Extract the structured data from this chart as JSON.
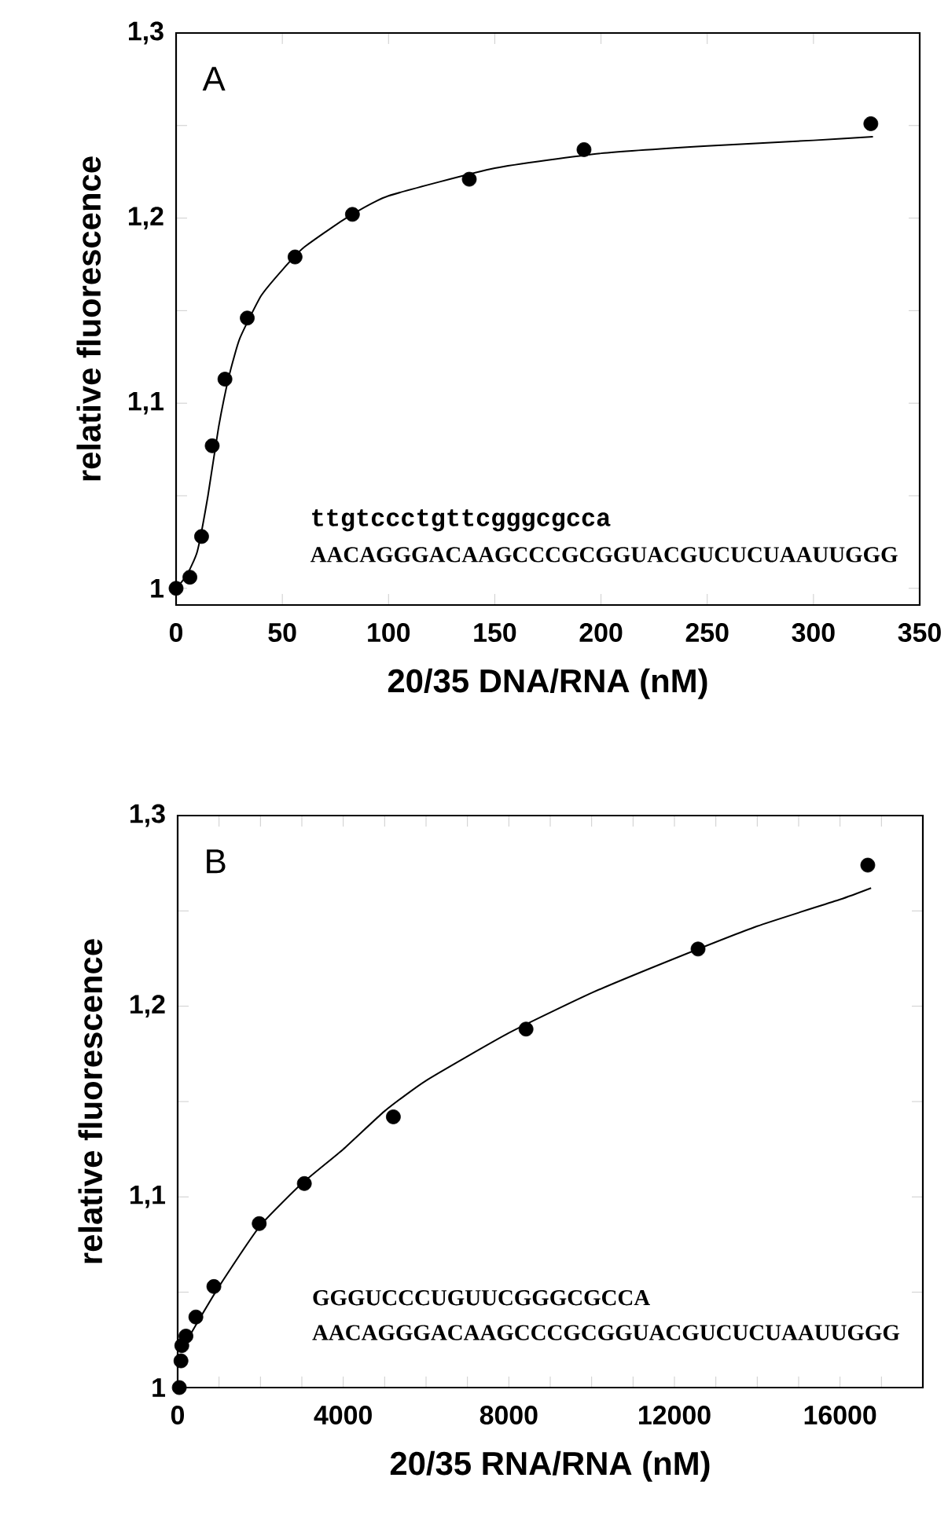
{
  "chart_data": [
    {
      "type": "scatter",
      "xlabel": "20/35 DNA/RNA (nM)",
      "ylabel": "relative fluorescence",
      "xlim": [
        0,
        350
      ],
      "xticks": [
        0,
        50,
        100,
        150,
        200,
        250,
        300,
        350
      ],
      "ylim": [
        0.991,
        1.3
      ],
      "yticks": [
        {
          "value": 1,
          "label": "1"
        },
        {
          "value": 1.05,
          "label": null
        },
        {
          "value": 1.1,
          "label": "1,1"
        },
        {
          "value": 1.15,
          "label": null
        },
        {
          "value": 1.2,
          "label": "1,2"
        },
        {
          "value": 1.25,
          "label": null
        },
        {
          "value": 1.3,
          "label": "1,3"
        }
      ],
      "annotations": [
        "A",
        "ttgtccctgttcgggcgcca",
        "AACAGGGACAAGCCCGCGGUACGUCUCUAAUUGGG"
      ],
      "series": [
        {
          "color": "#000000",
          "marker": "circle",
          "x": [
            0,
            6.5,
            12,
            17,
            23,
            33.5,
            56,
            83,
            138,
            192,
            327
          ],
          "values": [
            1.0,
            1.006,
            1.028,
            1.077,
            1.113,
            1.146,
            1.179,
            1.202,
            1.221,
            1.237,
            1.251
          ]
        },
        {
          "type": "line",
          "color": "#000000",
          "marker": "none",
          "x": [
            0,
            5,
            10,
            15,
            20,
            25,
            30,
            40,
            50,
            60,
            80,
            100,
            150,
            200,
            250,
            300,
            328
          ],
          "values": [
            1.0,
            1.007,
            1.02,
            1.05,
            1.087,
            1.115,
            1.135,
            1.158,
            1.172,
            1.184,
            1.2,
            1.212,
            1.227,
            1.235,
            1.239,
            1.242,
            1.244
          ]
        }
      ]
    },
    {
      "type": "scatter",
      "xlabel": "20/35 RNA/RNA (nM)",
      "ylabel": "relative fluorescence",
      "xlim": [
        0,
        18000
      ],
      "xticks": [
        0,
        {
          "value": 1000,
          "label": null
        },
        {
          "value": 2000,
          "label": null
        },
        {
          "value": 3000,
          "label": null
        },
        4000,
        {
          "value": 5000,
          "label": null
        },
        {
          "value": 6000,
          "label": null
        },
        {
          "value": 7000,
          "label": null
        },
        8000,
        {
          "value": 9000,
          "label": null
        },
        {
          "value": 10000,
          "label": null
        },
        {
          "value": 11000,
          "label": null
        },
        12000,
        {
          "value": 13000,
          "label": null
        },
        {
          "value": 14000,
          "label": null
        },
        {
          "value": 15000,
          "label": null
        },
        16000,
        {
          "value": 17000,
          "label": null
        }
      ],
      "ylim": [
        1,
        1.3
      ],
      "yticks": [
        {
          "value": 1,
          "label": "1"
        },
        {
          "value": 1.05,
          "label": null
        },
        {
          "value": 1.1,
          "label": "1,1"
        },
        {
          "value": 1.15,
          "label": null
        },
        {
          "value": 1.2,
          "label": "1,2"
        },
        {
          "value": 1.25,
          "label": null
        },
        {
          "value": 1.3,
          "label": "1,3"
        }
      ],
      "annotations": [
        "B",
        "GGGUCCCUGUUCGGGCGCCA",
        "AACAGGGACAAGCCCGCGGUACGUCUCUAAUUGGG"
      ],
      "series": [
        {
          "color": "#000000",
          "marker": "circle",
          "x": [
            40,
            80,
            100,
            200,
            440,
            875,
            1970,
            3060,
            5210,
            8415,
            12570,
            16670
          ],
          "values": [
            1.0,
            1.014,
            1.022,
            1.027,
            1.037,
            1.053,
            1.086,
            1.107,
            1.142,
            1.188,
            1.23,
            1.274
          ]
        },
        {
          "type": "line",
          "color": "#000000",
          "marker": "none",
          "x": [
            100,
            500,
            1000,
            2000,
            3000,
            4000,
            5000,
            6000,
            8000,
            10000,
            12000,
            14000,
            16000,
            16750
          ],
          "values": [
            1.02,
            1.035,
            1.053,
            1.085,
            1.107,
            1.125,
            1.145,
            1.161,
            1.186,
            1.207,
            1.225,
            1.242,
            1.256,
            1.262
          ]
        }
      ]
    }
  ]
}
